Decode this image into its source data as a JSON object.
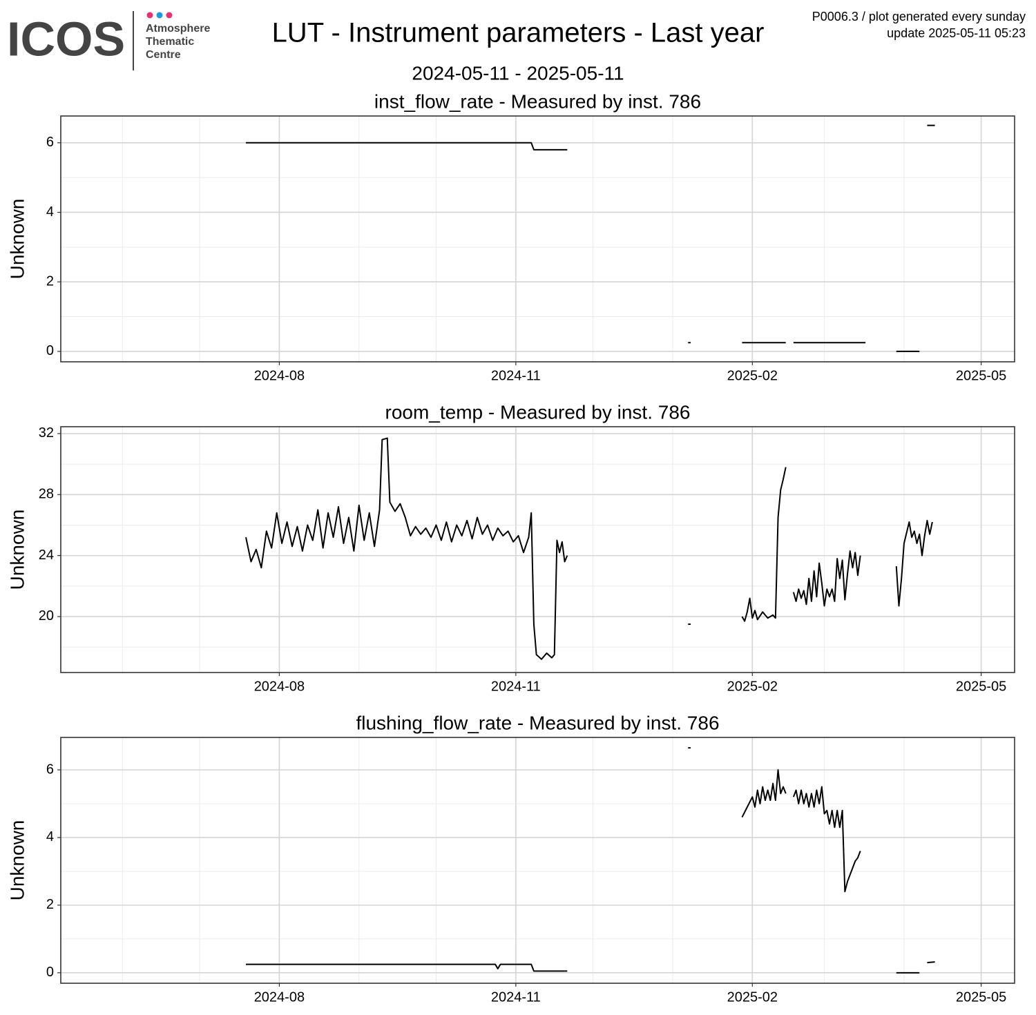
{
  "header": {
    "logo": "ICOS",
    "logo_lines": [
      "Atmosphere",
      "Thematic",
      "Centre"
    ],
    "title": "LUT - Instrument parameters - Last year",
    "subtitle": "2024-05-11 - 2025-05-11",
    "notes": [
      "P0006.3 / plot generated every sunday",
      "update  2025-05-11 05:23"
    ]
  },
  "chart_data": [
    {
      "type": "line",
      "title": "inst_flow_rate - Measured by inst. 786",
      "ylabel": "Unknown",
      "color": "#000000",
      "grid": true,
      "xlim": [
        "2024-05-08",
        "2025-05-14"
      ],
      "xticks": [
        {
          "value": "2024-08-01",
          "label": "2024-08"
        },
        {
          "value": "2024-11-01",
          "label": "2024-11"
        },
        {
          "value": "2025-02-01",
          "label": "2025-02"
        },
        {
          "value": "2025-05-01",
          "label": "2025-05"
        }
      ],
      "xminor": [
        "2024-06-01",
        "2024-07-01",
        "2024-09-01",
        "2024-10-01",
        "2024-12-01",
        "2025-01-01",
        "2025-03-01",
        "2025-04-01"
      ],
      "ylim": [
        -0.3,
        6.77
      ],
      "yticks": [
        0,
        2,
        4,
        6
      ],
      "yminor": [
        1,
        3,
        5
      ],
      "x": [
        "2024-07-19",
        "2024-11-07",
        "2024-11-08",
        "2024-11-21",
        null,
        "2025-01-07",
        "2025-01-08",
        null,
        "2025-01-28",
        "2025-02-14",
        null,
        "2025-02-17",
        "2025-03-17",
        null,
        "2025-03-29",
        "2025-04-07",
        null,
        "2025-04-10",
        "2025-04-13"
      ],
      "values": [
        6,
        6,
        5.8,
        5.8,
        null,
        0.25,
        0.25,
        null,
        0.25,
        0.25,
        null,
        0.25,
        0.25,
        null,
        0,
        0,
        null,
        6.5,
        6.5
      ]
    },
    {
      "type": "line",
      "title": "room_temp - Measured by inst. 786",
      "ylabel": "Unknown",
      "color": "#000000",
      "grid": true,
      "xlim": [
        "2024-05-08",
        "2025-05-14"
      ],
      "xticks": [
        {
          "value": "2024-08-01",
          "label": "2024-08"
        },
        {
          "value": "2024-11-01",
          "label": "2024-11"
        },
        {
          "value": "2025-02-01",
          "label": "2025-02"
        },
        {
          "value": "2025-05-01",
          "label": "2025-05"
        }
      ],
      "xminor": [
        "2024-06-01",
        "2024-07-01",
        "2024-09-01",
        "2024-10-01",
        "2024-12-01",
        "2025-01-01",
        "2025-03-01",
        "2025-04-01"
      ],
      "ylim": [
        16.33,
        32.45
      ],
      "yticks": [
        20,
        24,
        28,
        32
      ],
      "yminor": [
        18,
        22,
        26,
        30
      ],
      "x": [
        "2024-07-19",
        "2024-07-21",
        "2024-07-23",
        "2024-07-25",
        "2024-07-27",
        "2024-07-29",
        "2024-07-31",
        "2024-08-02",
        "2024-08-04",
        "2024-08-06",
        "2024-08-08",
        "2024-08-10",
        "2024-08-12",
        "2024-08-14",
        "2024-08-16",
        "2024-08-18",
        "2024-08-20",
        "2024-08-22",
        "2024-08-24",
        "2024-08-26",
        "2024-08-28",
        "2024-08-30",
        "2024-09-01",
        "2024-09-03",
        "2024-09-05",
        "2024-09-07",
        "2024-09-09",
        "2024-09-10",
        "2024-09-12",
        "2024-09-13",
        "2024-09-15",
        "2024-09-17",
        "2024-09-19",
        "2024-09-21",
        "2024-09-23",
        "2024-09-25",
        "2024-09-27",
        "2024-09-29",
        "2024-10-01",
        "2024-10-03",
        "2024-10-05",
        "2024-10-07",
        "2024-10-09",
        "2024-10-11",
        "2024-10-13",
        "2024-10-15",
        "2024-10-17",
        "2024-10-19",
        "2024-10-21",
        "2024-10-23",
        "2024-10-25",
        "2024-10-27",
        "2024-10-29",
        "2024-10-31",
        "2024-11-02",
        "2024-11-04",
        "2024-11-06",
        "2024-11-07",
        "2024-11-08",
        "2024-11-09",
        "2024-11-11",
        "2024-11-13",
        "2024-11-15",
        "2024-11-16",
        "2024-11-17",
        "2024-11-18",
        "2024-11-19",
        "2024-11-20",
        "2024-11-21",
        null,
        "2025-01-07",
        "2025-01-08",
        null,
        "2025-01-28",
        "2025-01-29",
        "2025-01-30",
        "2025-01-31",
        "2025-02-01",
        "2025-02-02",
        "2025-02-03",
        "2025-02-05",
        "2025-02-07",
        "2025-02-09",
        "2025-02-10",
        "2025-02-11",
        "2025-02-12",
        "2025-02-13",
        "2025-02-14",
        null,
        "2025-02-17",
        "2025-02-18",
        "2025-02-19",
        "2025-02-20",
        "2025-02-21",
        "2025-02-22",
        "2025-02-23",
        "2025-02-24",
        "2025-02-25",
        "2025-02-26",
        "2025-02-27",
        "2025-02-28",
        "2025-03-01",
        "2025-03-02",
        "2025-03-03",
        "2025-03-04",
        "2025-03-05",
        "2025-03-06",
        "2025-03-07",
        "2025-03-08",
        "2025-03-09",
        "2025-03-10",
        "2025-03-11",
        "2025-03-12",
        "2025-03-13",
        "2025-03-14",
        "2025-03-15",
        null,
        "2025-03-29",
        "2025-03-30",
        "2025-03-31",
        "2025-04-01",
        "2025-04-02",
        "2025-04-03",
        "2025-04-04",
        "2025-04-05",
        "2025-04-06",
        "2025-04-07",
        "2025-04-08",
        "2025-04-09",
        "2025-04-10",
        "2025-04-11",
        "2025-04-12"
      ],
      "values": [
        25.2,
        23.6,
        24.4,
        23.2,
        25.6,
        24.5,
        26.8,
        24.8,
        26.2,
        24.6,
        25.9,
        24.3,
        26.0,
        25.0,
        27.0,
        24.5,
        26.8,
        25.2,
        27.2,
        24.8,
        26.5,
        24.3,
        27.3,
        25.0,
        26.8,
        24.6,
        27.0,
        31.6,
        31.7,
        27.5,
        26.9,
        27.4,
        26.5,
        25.3,
        25.9,
        25.4,
        25.8,
        25.2,
        26.0,
        25.0,
        26.2,
        24.9,
        26.0,
        25.3,
        26.3,
        25.1,
        26.5,
        25.4,
        26.0,
        25.0,
        25.8,
        25.3,
        25.6,
        24.9,
        25.3,
        24.2,
        25.2,
        26.8,
        19.5,
        17.5,
        17.2,
        17.6,
        17.3,
        17.5,
        25.0,
        24.2,
        24.9,
        23.6,
        24.0,
        null,
        19.5,
        19.5,
        null,
        20.0,
        19.7,
        20.3,
        21.2,
        19.9,
        20.4,
        19.8,
        20.3,
        19.9,
        20.1,
        19.9,
        26.5,
        28.3,
        29.0,
        29.8,
        null,
        21.6,
        21.0,
        21.8,
        21.2,
        21.7,
        20.8,
        22.5,
        21.0,
        23.0,
        21.3,
        23.5,
        22.2,
        20.7,
        21.8,
        21.3,
        21.8,
        21.0,
        23.8,
        22.5,
        23.7,
        21.1,
        22.8,
        24.3,
        23.2,
        24.2,
        22.7,
        24.0,
        null,
        23.3,
        20.7,
        22.5,
        24.8,
        25.5,
        26.2,
        25.2,
        25.6,
        24.8,
        25.4,
        24.0,
        25.3,
        26.3,
        25.4,
        26.2
      ]
    },
    {
      "type": "line",
      "title": "flushing_flow_rate - Measured by inst. 786",
      "ylabel": "Unknown",
      "color": "#000000",
      "grid": true,
      "xlim": [
        "2024-05-08",
        "2025-05-14"
      ],
      "xticks": [
        {
          "value": "2024-08-01",
          "label": "2024-08"
        },
        {
          "value": "2024-11-01",
          "label": "2024-11"
        },
        {
          "value": "2025-02-01",
          "label": "2025-02"
        },
        {
          "value": "2025-05-01",
          "label": "2025-05"
        }
      ],
      "xminor": [
        "2024-06-01",
        "2024-07-01",
        "2024-09-01",
        "2024-10-01",
        "2024-12-01",
        "2025-01-01",
        "2025-03-01",
        "2025-04-01"
      ],
      "ylim": [
        -0.31,
        6.96
      ],
      "yticks": [
        0,
        2,
        4,
        6
      ],
      "yminor": [
        1,
        3,
        5
      ],
      "x": [
        "2024-07-19",
        "2024-10-24",
        "2024-10-25",
        "2024-10-26",
        "2024-11-07",
        "2024-11-08",
        "2024-11-21",
        null,
        "2025-01-07",
        "2025-01-08",
        null,
        "2025-01-28",
        "2025-01-30",
        "2025-02-01",
        "2025-02-02",
        "2025-02-03",
        "2025-02-04",
        "2025-02-05",
        "2025-02-06",
        "2025-02-07",
        "2025-02-08",
        "2025-02-09",
        "2025-02-10",
        "2025-02-11",
        "2025-02-12",
        "2025-02-13",
        "2025-02-14",
        null,
        "2025-02-17",
        "2025-02-18",
        "2025-02-19",
        "2025-02-20",
        "2025-02-21",
        "2025-02-22",
        "2025-02-23",
        "2025-02-24",
        "2025-02-25",
        "2025-02-26",
        "2025-02-27",
        "2025-02-28",
        "2025-03-01",
        "2025-03-02",
        "2025-03-03",
        "2025-03-04",
        "2025-03-05",
        "2025-03-06",
        "2025-03-07",
        "2025-03-08",
        "2025-03-09",
        "2025-03-10",
        "2025-03-11",
        "2025-03-12",
        "2025-03-13",
        "2025-03-14",
        "2025-03-15",
        null,
        "2025-03-29",
        "2025-04-07",
        null,
        "2025-04-10",
        "2025-04-13"
      ],
      "values": [
        0.25,
        0.25,
        0.12,
        0.25,
        0.25,
        0.05,
        0.05,
        null,
        6.65,
        6.65,
        null,
        4.6,
        4.9,
        5.2,
        4.9,
        5.4,
        5.0,
        5.5,
        5.1,
        5.4,
        5.1,
        5.6,
        5.1,
        6.0,
        5.3,
        5.5,
        5.3,
        null,
        5.2,
        5.4,
        5.0,
        5.4,
        5.0,
        5.3,
        4.9,
        5.3,
        4.9,
        5.4,
        5.0,
        5.5,
        4.7,
        4.8,
        4.4,
        4.8,
        4.3,
        4.8,
        4.3,
        4.8,
        2.4,
        2.7,
        2.9,
        3.1,
        3.3,
        3.4,
        3.6,
        null,
        0,
        0,
        null,
        0.3,
        0.32
      ]
    }
  ]
}
